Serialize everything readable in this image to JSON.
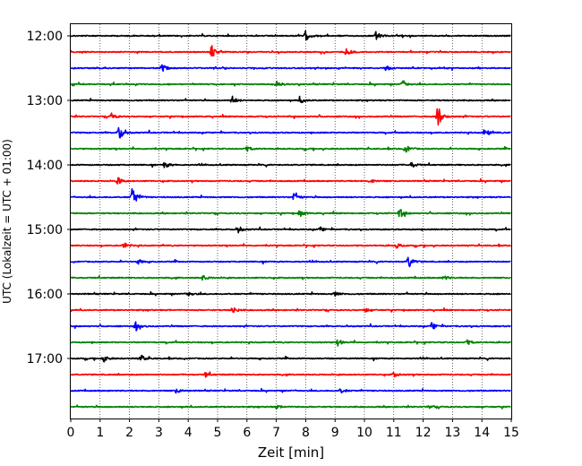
{
  "chart_data": {
    "type": "line",
    "title": "",
    "xlabel": "Zeit  [min]",
    "ylabel": "UTC (Lokalzeit = UTC + 01:00)",
    "xlim": [
      0,
      15
    ],
    "x_ticks": [
      0,
      1,
      2,
      3,
      4,
      5,
      6,
      7,
      8,
      9,
      10,
      11,
      12,
      13,
      14,
      15
    ],
    "y_tick_labels": [
      "12:00",
      "13:00",
      "14:00",
      "15:00",
      "16:00",
      "17:00"
    ],
    "grid": "vertical dotted at each minute",
    "row_colors": [
      "#000000",
      "#ff0000",
      "#0000ff",
      "#008000"
    ],
    "series": [
      {
        "start": "12:00",
        "color": "black",
        "events": [
          {
            "t": 8.0,
            "amp": 0.6
          },
          {
            "t": 10.4,
            "amp": 0.5
          }
        ]
      },
      {
        "start": "12:15",
        "color": "red",
        "events": [
          {
            "t": 4.8,
            "amp": 0.8
          },
          {
            "t": 9.4,
            "amp": 0.4
          }
        ]
      },
      {
        "start": "12:30",
        "color": "blue",
        "events": [
          {
            "t": 3.1,
            "amp": 0.5
          },
          {
            "t": 10.7,
            "amp": 0.4
          }
        ]
      },
      {
        "start": "12:45",
        "color": "green",
        "events": [
          {
            "t": 7.0,
            "amp": 0.5
          },
          {
            "t": 11.3,
            "amp": 0.5
          }
        ]
      },
      {
        "start": "13:00",
        "color": "black",
        "events": [
          {
            "t": 5.5,
            "amp": 0.5
          },
          {
            "t": 7.8,
            "amp": 0.4
          }
        ]
      },
      {
        "start": "13:15",
        "color": "red",
        "events": [
          {
            "t": 12.5,
            "amp": 1.3
          },
          {
            "t": 1.4,
            "amp": 0.4
          }
        ]
      },
      {
        "start": "13:30",
        "color": "blue",
        "events": [
          {
            "t": 1.65,
            "amp": 1.0
          },
          {
            "t": 14.1,
            "amp": 0.6
          }
        ]
      },
      {
        "start": "13:45",
        "color": "green",
        "events": [
          {
            "t": 11.4,
            "amp": 0.5
          },
          {
            "t": 6.0,
            "amp": 0.3
          }
        ]
      },
      {
        "start": "14:00",
        "color": "black",
        "events": [
          {
            "t": 3.2,
            "amp": 0.4
          },
          {
            "t": 11.6,
            "amp": 0.4
          }
        ]
      },
      {
        "start": "14:15",
        "color": "red",
        "events": [
          {
            "t": 1.6,
            "amp": 0.5
          },
          {
            "t": 10.2,
            "amp": 0.3
          }
        ]
      },
      {
        "start": "14:30",
        "color": "blue",
        "events": [
          {
            "t": 2.1,
            "amp": 1.5
          },
          {
            "t": 7.6,
            "amp": 0.6
          }
        ]
      },
      {
        "start": "14:45",
        "color": "green",
        "events": [
          {
            "t": 11.2,
            "amp": 0.6
          },
          {
            "t": 7.8,
            "amp": 0.4
          }
        ]
      },
      {
        "start": "15:00",
        "color": "black",
        "events": [
          {
            "t": 5.7,
            "amp": 0.4
          },
          {
            "t": 8.5,
            "amp": 0.3
          }
        ]
      },
      {
        "start": "15:15",
        "color": "red",
        "events": [
          {
            "t": 1.8,
            "amp": 0.4
          },
          {
            "t": 11.1,
            "amp": 0.3
          }
        ]
      },
      {
        "start": "15:30",
        "color": "blue",
        "events": [
          {
            "t": 11.5,
            "amp": 0.8
          },
          {
            "t": 2.3,
            "amp": 0.3
          }
        ]
      },
      {
        "start": "15:45",
        "color": "green",
        "events": [
          {
            "t": 4.5,
            "amp": 0.3
          },
          {
            "t": 12.7,
            "amp": 0.3
          }
        ]
      },
      {
        "start": "16:00",
        "color": "black",
        "events": [
          {
            "t": 4.0,
            "amp": 0.3
          },
          {
            "t": 9.0,
            "amp": 0.3
          }
        ]
      },
      {
        "start": "16:15",
        "color": "red",
        "events": [
          {
            "t": 5.5,
            "amp": 0.5
          },
          {
            "t": 10.0,
            "amp": 0.3
          }
        ]
      },
      {
        "start": "16:30",
        "color": "blue",
        "events": [
          {
            "t": 2.2,
            "amp": 0.6
          },
          {
            "t": 12.3,
            "amp": 0.5
          }
        ]
      },
      {
        "start": "16:45",
        "color": "green",
        "events": [
          {
            "t": 9.1,
            "amp": 0.4
          },
          {
            "t": 13.5,
            "amp": 0.3
          }
        ]
      },
      {
        "start": "17:00",
        "color": "black",
        "events": [
          {
            "t": 1.1,
            "amp": 0.5
          },
          {
            "t": 2.4,
            "amp": 0.4
          }
        ]
      },
      {
        "start": "17:15",
        "color": "red",
        "events": [
          {
            "t": 4.6,
            "amp": 0.3
          },
          {
            "t": 11.0,
            "amp": 0.3
          }
        ]
      },
      {
        "start": "17:30",
        "color": "blue",
        "events": [
          {
            "t": 9.2,
            "amp": 0.3
          },
          {
            "t": 3.6,
            "amp": 0.3
          }
        ]
      },
      {
        "start": "17:45",
        "color": "green",
        "events": [
          {
            "t": 7.0,
            "amp": 0.2
          },
          {
            "t": 12.2,
            "amp": 0.2
          }
        ]
      }
    ]
  }
}
